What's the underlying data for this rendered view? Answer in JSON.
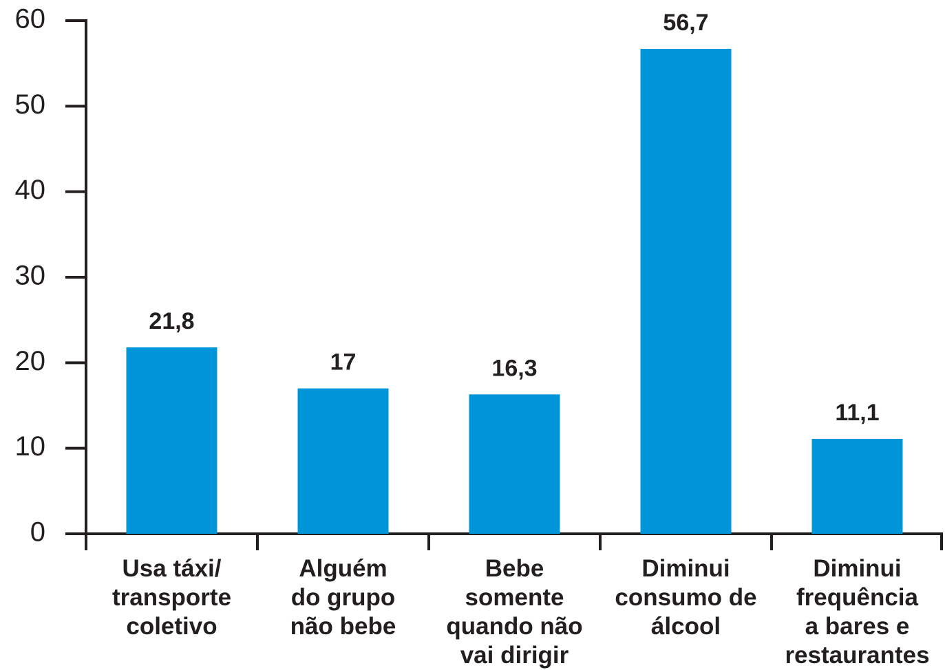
{
  "chart_data": {
    "type": "bar",
    "categories": [
      "Usa táxi/\ntransporte\ncoletivo",
      "Alguém\ndo grupo\nnão bebe",
      "Bebe\nsomente\nquando não\nvai dirigir",
      "Diminui\nconsumo de\nálcool",
      "Diminui\nfrequência\na bares e\nrestaurantes"
    ],
    "values": [
      21.8,
      17,
      16.3,
      56.7,
      11.1
    ],
    "value_labels": [
      "21,8",
      "17",
      "16,3",
      "56,7",
      "11,1"
    ],
    "color": "#0095d9",
    "ylim": [
      0,
      60
    ],
    "yticks": [
      0,
      10,
      20,
      30,
      40,
      50,
      60
    ],
    "grid": false
  }
}
